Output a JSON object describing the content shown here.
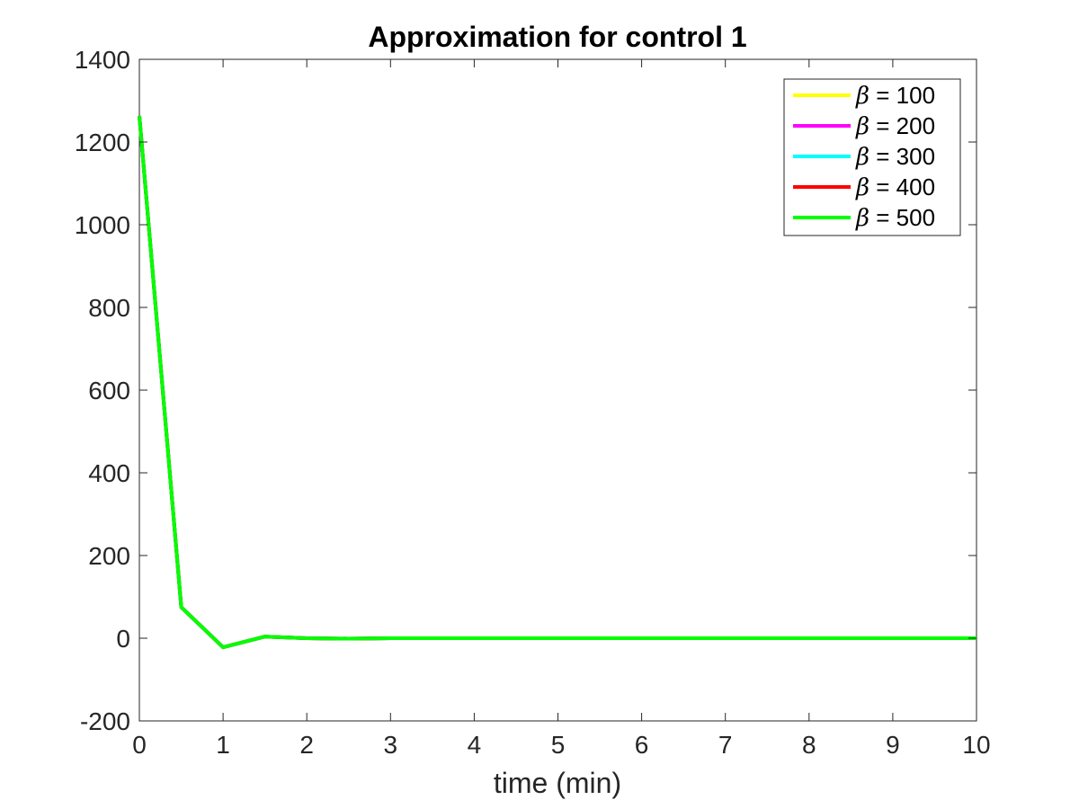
{
  "chart_data": {
    "type": "line",
    "title": "Approximation for control 1",
    "xlabel": "time (min)",
    "ylabel": "",
    "xlim": [
      0,
      10
    ],
    "ylim": [
      -200,
      1400
    ],
    "xticks": [
      "0",
      "1",
      "2",
      "3",
      "4",
      "5",
      "6",
      "7",
      "8",
      "9",
      "10"
    ],
    "yticks": [
      "-200",
      "0",
      "200",
      "400",
      "600",
      "800",
      "1000",
      "1200",
      "1400"
    ],
    "grid": false,
    "legend_position": "top-right",
    "x": [
      0,
      0.5,
      1,
      1.5,
      2,
      2.5,
      3,
      3.5,
      4,
      4.5,
      5,
      5.5,
      6,
      6.5,
      7,
      7.5,
      8,
      8.5,
      9,
      9.5,
      10
    ],
    "series": [
      {
        "name": "β = 100",
        "symbol": "β",
        "value_label": " = 100",
        "color": "#ffff00",
        "values": [
          1263,
          75,
          -22,
          4,
          0,
          -1,
          0,
          0,
          0,
          0,
          0,
          0,
          0,
          0,
          0,
          0,
          0,
          0,
          0,
          0,
          0
        ]
      },
      {
        "name": "β = 200",
        "symbol": "β",
        "value_label": " = 200",
        "color": "#ff00ff",
        "values": [
          1263,
          75,
          -22,
          4,
          0,
          -1,
          0,
          0,
          0,
          0,
          0,
          0,
          0,
          0,
          0,
          0,
          0,
          0,
          0,
          0,
          0
        ]
      },
      {
        "name": "β = 300",
        "symbol": "β",
        "value_label": " = 300",
        "color": "#00ffff",
        "values": [
          1263,
          75,
          -22,
          4,
          0,
          -1,
          0,
          0,
          0,
          0,
          0,
          0,
          0,
          0,
          0,
          0,
          0,
          0,
          0,
          0,
          0
        ]
      },
      {
        "name": "β = 400",
        "symbol": "β",
        "value_label": " = 400",
        "color": "#ff0000",
        "values": [
          1263,
          75,
          -22,
          4,
          0,
          -1,
          0,
          0,
          0,
          0,
          0,
          0,
          0,
          0,
          0,
          0,
          0,
          0,
          0,
          0,
          0
        ]
      },
      {
        "name": "β = 500",
        "symbol": "β",
        "value_label": " = 500",
        "color": "#00ff00",
        "values": [
          1263,
          75,
          -22,
          4,
          0,
          -1,
          0,
          0,
          0,
          0,
          0,
          0,
          0,
          0,
          0,
          0,
          0,
          0,
          0,
          0,
          0
        ]
      }
    ]
  }
}
